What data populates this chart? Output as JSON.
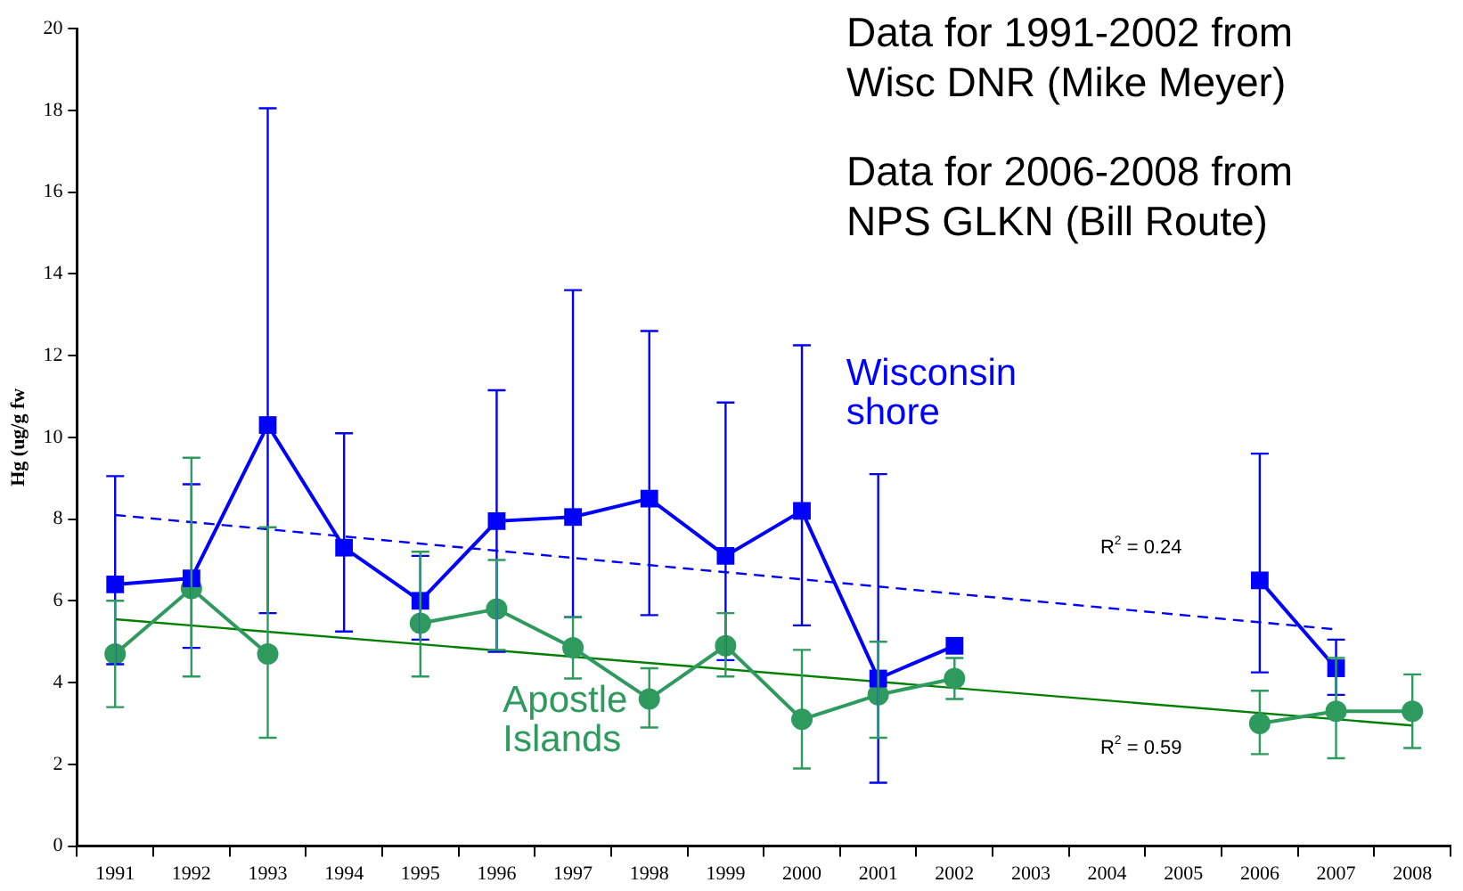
{
  "chart_data": {
    "type": "line",
    "ylabel": "Hg (ug/g fw",
    "categories": [
      "1991",
      "1992",
      "1993",
      "1994",
      "1995",
      "1996",
      "1997",
      "1998",
      "1999",
      "2000",
      "2001",
      "2002",
      "2003",
      "2004",
      "2005",
      "2006",
      "2007",
      "2008"
    ],
    "ylim": [
      0,
      20
    ],
    "yticks": [
      0,
      2,
      4,
      6,
      8,
      10,
      12,
      14,
      16,
      18,
      20
    ],
    "grid": false,
    "legend": false,
    "series": [
      {
        "name": "Wisconsin shore",
        "color": "#0000ff",
        "marker": "square",
        "values": [
          6.4,
          6.55,
          10.3,
          7.3,
          6.0,
          7.95,
          8.05,
          8.5,
          7.1,
          8.2,
          4.1,
          4.9,
          null,
          null,
          null,
          6.5,
          4.35,
          null
        ],
        "errors": [
          [
            4.45,
            9.05
          ],
          [
            4.85,
            8.85
          ],
          [
            5.7,
            18.05
          ],
          [
            5.25,
            10.1
          ],
          [
            5.05,
            7.1
          ],
          [
            4.75,
            11.15
          ],
          [
            5.6,
            13.6
          ],
          [
            5.65,
            12.6
          ],
          [
            4.55,
            10.85
          ],
          [
            5.4,
            12.25
          ],
          [
            1.55,
            9.1
          ],
          null,
          null,
          null,
          null,
          [
            4.25,
            9.6
          ],
          [
            3.7,
            5.05
          ],
          null
        ]
      },
      {
        "name": "Apostle Islands",
        "color": "#2e9a5e",
        "marker": "circle",
        "values": [
          4.7,
          6.3,
          4.7,
          null,
          5.45,
          5.8,
          4.85,
          3.6,
          4.9,
          3.1,
          3.7,
          4.1,
          null,
          null,
          null,
          3.0,
          3.3,
          3.3
        ],
        "errors": [
          [
            3.4,
            6.0
          ],
          [
            4.15,
            9.5
          ],
          [
            2.65,
            7.8
          ],
          null,
          [
            4.15,
            7.2
          ],
          [
            4.8,
            7.0
          ],
          [
            4.1,
            5.6
          ],
          [
            2.9,
            4.35
          ],
          [
            4.15,
            5.7
          ],
          [
            1.9,
            4.8
          ],
          [
            2.65,
            5.0
          ],
          [
            3.6,
            4.6
          ],
          null,
          null,
          null,
          [
            2.25,
            3.8
          ],
          [
            2.15,
            4.6
          ],
          [
            2.4,
            4.2
          ]
        ]
      },
      {
        "type": "line",
        "color": "#0000ff",
        "marker": "none",
        "line_style": "dashed",
        "values": [
          8.1,
          null,
          null,
          null,
          null,
          null,
          null,
          null,
          null,
          null,
          null,
          null,
          null,
          null,
          null,
          null,
          5.3,
          null
        ]
      },
      {
        "type": "line",
        "color": "#008000",
        "marker": "none",
        "line_style": "solid",
        "values": [
          5.55,
          null,
          null,
          null,
          null,
          null,
          null,
          null,
          null,
          null,
          null,
          null,
          null,
          null,
          null,
          null,
          null,
          2.95
        ]
      }
    ],
    "annotations": [
      "Data for 1991-2002 from Wisc DNR (Mike Meyer)",
      "Data for 2006-2008 from NPS GLKN (Bill Route)",
      "R$^{2}$ = 0.24",
      "R$^{2}$ = 0.59"
    ]
  }
}
